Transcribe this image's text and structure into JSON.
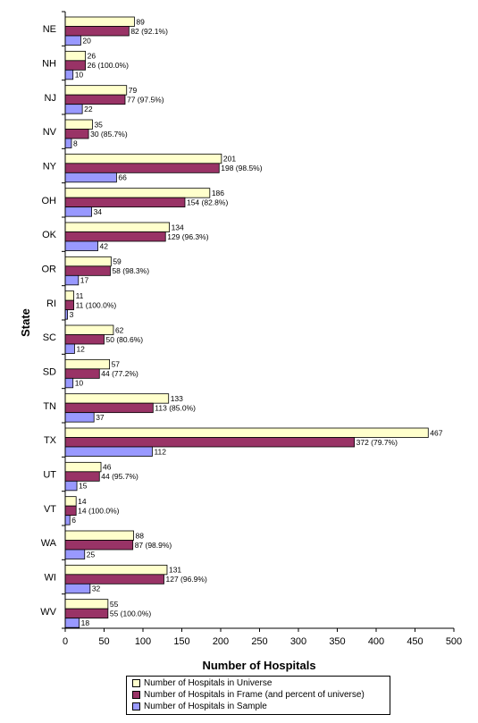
{
  "chart_data": {
    "type": "bar",
    "orientation": "horizontal",
    "ylabel": "State",
    "xlabel": "Number of Hospitals",
    "xlim": [
      0,
      500
    ],
    "xticks": [
      0,
      50,
      100,
      150,
      200,
      250,
      300,
      350,
      400,
      450,
      500
    ],
    "grid": false,
    "legend_position": "bottom",
    "categories": [
      "NE",
      "NH",
      "NJ",
      "NV",
      "NY",
      "OH",
      "OK",
      "OR",
      "RI",
      "SC",
      "SD",
      "TN",
      "TX",
      "UT",
      "VT",
      "WA",
      "WI",
      "WV"
    ],
    "series": [
      {
        "name": "Number of Hospitals in Universe",
        "color": "#FFFFCC",
        "values": [
          89,
          26,
          79,
          35,
          201,
          186,
          134,
          59,
          11,
          62,
          57,
          133,
          467,
          46,
          14,
          88,
          131,
          55
        ],
        "labels": [
          "89",
          "26",
          "79",
          "35",
          "201",
          "186",
          "134",
          "59",
          "11",
          "62",
          "57",
          "133",
          "467",
          "46",
          "14",
          "88",
          "131",
          "55"
        ]
      },
      {
        "name": "Number of Hospitals in Frame (and percent of universe)",
        "color": "#993366",
        "values": [
          82,
          26,
          77,
          30,
          198,
          154,
          129,
          58,
          11,
          50,
          44,
          113,
          372,
          44,
          14,
          87,
          127,
          55
        ],
        "labels": [
          "82 (92.1%)",
          "26 (100.0%)",
          "77 (97.5%)",
          "30 (85.7%)",
          "198 (98.5%)",
          "154 (82.8%)",
          "129 (96.3%)",
          "58 (98.3%)",
          "11 (100.0%)",
          "50 (80.6%)",
          "44 (77.2%)",
          "113 (85.0%)",
          "372 (79.7%)",
          "44 (95.7%)",
          "14 (100.0%)",
          "87 (98.9%)",
          "127 (96.9%)",
          "55 (100.0%)"
        ]
      },
      {
        "name": "Number of Hospitals in Sample",
        "color": "#9999FF",
        "values": [
          20,
          10,
          22,
          8,
          66,
          34,
          42,
          17,
          3,
          12,
          10,
          37,
          112,
          15,
          6,
          25,
          32,
          18
        ],
        "labels": [
          "20",
          "10",
          "22",
          "8",
          "66",
          "34",
          "42",
          "17",
          "3",
          "12",
          "10",
          "37",
          "112",
          "15",
          "6",
          "25",
          "32",
          "18"
        ]
      }
    ]
  }
}
